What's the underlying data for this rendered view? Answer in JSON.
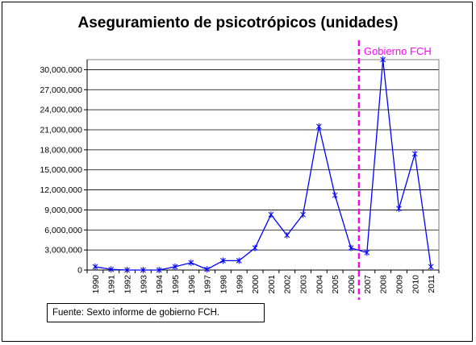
{
  "chart_data": {
    "type": "line",
    "title": "Aseguramiento de psicotrópicos (unidades)",
    "xlabel": "",
    "ylabel": "",
    "categories": [
      "1990",
      "1991",
      "1992",
      "1993",
      "1994",
      "1995",
      "1996",
      "1997",
      "1998",
      "1999",
      "2000",
      "2001",
      "2002",
      "2003",
      "2004",
      "2005",
      "2006",
      "2007",
      "2008",
      "2009",
      "2010",
      "2011"
    ],
    "series": [
      {
        "values": [
          500000,
          100000,
          0,
          0,
          0,
          500000,
          1100000,
          100000,
          1400000,
          1400000,
          3300000,
          8300000,
          5200000,
          8300000,
          21500000,
          11200000,
          3300000,
          2600000,
          31500000,
          9200000,
          17400000,
          500000
        ],
        "color": "#0000ff",
        "marker": "asterisk"
      }
    ],
    "ylim": [
      0,
      30000000
    ],
    "yticks": [
      0,
      3000000,
      6000000,
      9000000,
      12000000,
      15000000,
      18000000,
      21000000,
      24000000,
      27000000,
      30000000
    ],
    "ytick_labels": [
      "0",
      "3,000,000",
      "6,000,000",
      "9,000,000",
      "12,000,000",
      "15,000,000",
      "18,000,000",
      "21,000,000",
      "24,000,000",
      "27,000,000",
      "30,000,000"
    ],
    "grid": true,
    "annotations": [
      {
        "text": "Gobierno FCH",
        "x_between": [
          "2006",
          "2007"
        ],
        "style": "dashed-vertical-line",
        "color": "#ff00ff"
      }
    ]
  },
  "source_note": "Fuente: Sexto informe de gobierno FCH."
}
